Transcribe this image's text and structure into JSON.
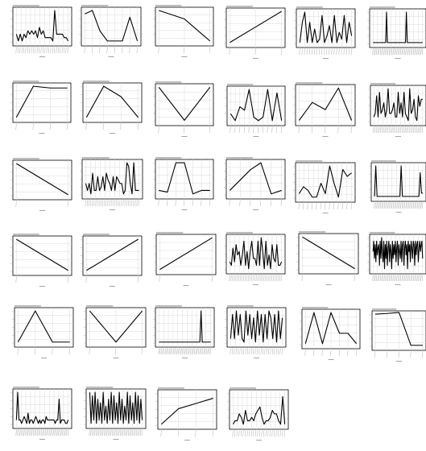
{
  "chart_data": [
    {
      "type": "line",
      "grid": true,
      "values": [
        3,
        1,
        3,
        1,
        3,
        2,
        4,
        3,
        4,
        3,
        4,
        2,
        5,
        3,
        4,
        2,
        2,
        2,
        2,
        1,
        10,
        3,
        3,
        3,
        3,
        2,
        2,
        1
      ],
      "ylim": [
        0,
        10.5
      ]
    },
    {
      "type": "line",
      "grid": true,
      "values": [
        9,
        10,
        4,
        1,
        1,
        1,
        8,
        1
      ],
      "ylim": [
        0,
        10.5
      ]
    },
    {
      "type": "line",
      "grid": true,
      "values": [
        10,
        7.5,
        1
      ],
      "ylim": [
        0,
        10.5
      ]
    },
    {
      "type": "line",
      "grid": true,
      "values": [
        1,
        5.5,
        10
      ],
      "ylim": [
        0,
        10.5
      ]
    },
    {
      "type": "line",
      "grid": true,
      "values": [
        1,
        7,
        10,
        1,
        7,
        1,
        5,
        1,
        2,
        9,
        1,
        3,
        6,
        1,
        9,
        1,
        4,
        2,
        9,
        1,
        7,
        3
      ],
      "ylim": [
        0,
        10.5
      ]
    },
    {
      "type": "line",
      "grid": true,
      "values": [
        1,
        1,
        1,
        1,
        1,
        1,
        1,
        1,
        1,
        1,
        1,
        1,
        1,
        1,
        1,
        10,
        1,
        1,
        1,
        1,
        1,
        1,
        1,
        1,
        1,
        1,
        1,
        1,
        1,
        1,
        1,
        1,
        1,
        1,
        1,
        1,
        1,
        10,
        1,
        1,
        1,
        1,
        1,
        1,
        1,
        1,
        1,
        1,
        1,
        1,
        1,
        1,
        1,
        1,
        1,
        1
      ],
      "ylim": [
        0,
        10.5
      ]
    },
    {
      "type": "line",
      "grid": true,
      "values": [
        1,
        10,
        9.5,
        9.5
      ],
      "ylim": [
        0,
        10.5
      ]
    },
    {
      "type": "line",
      "grid": true,
      "values": [
        1,
        10,
        7,
        1
      ],
      "ylim": [
        0,
        10.5
      ]
    },
    {
      "type": "line",
      "grid": true,
      "values": [
        10,
        1,
        10
      ],
      "ylim": [
        0,
        10.5
      ]
    },
    {
      "type": "line",
      "grid": true,
      "values": [
        3,
        1,
        5,
        4,
        10,
        2,
        1,
        2,
        10,
        1,
        9,
        1
      ],
      "ylim": [
        0,
        10.5
      ]
    },
    {
      "type": "line",
      "grid": true,
      "values": [
        1,
        6,
        4,
        10,
        1
      ],
      "ylim": [
        0,
        10.5
      ]
    },
    {
      "type": "line",
      "grid": true,
      "values": [
        2,
        3,
        8,
        2,
        9,
        3,
        4,
        6,
        2,
        4,
        10,
        3,
        3,
        4,
        6,
        2,
        2,
        9,
        3,
        6,
        2,
        9,
        3,
        2,
        1,
        10,
        3,
        4,
        7,
        2,
        1,
        8,
        5,
        7,
        7
      ],
      "ylim": [
        0,
        10.5
      ]
    },
    {
      "type": "line",
      "grid": true,
      "values": [
        10,
        1
      ],
      "ylim": [
        0,
        10.5
      ]
    },
    {
      "type": "line",
      "grid": true,
      "values": [
        4,
        2,
        4,
        1,
        7,
        2,
        2,
        6,
        2,
        3,
        6,
        2,
        7,
        5,
        4,
        2,
        6,
        2,
        6,
        5,
        4,
        4,
        1,
        2,
        10,
        9,
        4,
        1,
        10,
        2,
        2,
        2
      ],
      "ylim": [
        0,
        10.5
      ]
    },
    {
      "type": "line",
      "grid": true,
      "values": [
        2,
        1.5,
        10,
        10,
        1,
        2,
        2
      ],
      "ylim": [
        0,
        10.5
      ]
    },
    {
      "type": "line",
      "grid": true,
      "values": [
        2,
        5,
        8,
        10,
        1,
        2
      ],
      "ylim": [
        0,
        10.5
      ]
    },
    {
      "type": "line",
      "grid": true,
      "values": [
        2,
        4,
        3,
        1,
        1,
        5,
        2,
        10,
        5,
        1,
        9,
        7,
        8
      ],
      "ylim": [
        0,
        10.5
      ]
    },
    {
      "type": "line",
      "grid": true,
      "values": [
        1,
        10,
        1,
        1,
        1,
        1,
        1,
        1,
        1,
        1,
        1,
        1,
        1,
        1,
        1,
        1,
        1,
        1,
        1,
        1,
        1,
        10,
        1,
        1,
        1,
        1,
        1,
        1,
        1,
        1,
        1,
        1,
        1,
        1,
        1,
        1,
        8,
        2,
        2
      ],
      "ylim": [
        0,
        10.5
      ]
    },
    {
      "type": "line",
      "grid": true,
      "values": [
        10,
        1
      ],
      "ylim": [
        0,
        10.5
      ]
    },
    {
      "type": "line",
      "grid": true,
      "values": [
        1,
        10
      ],
      "ylim": [
        0,
        10.5
      ]
    },
    {
      "type": "line",
      "grid": true,
      "values": [
        1,
        10
      ],
      "ylim": [
        0,
        10.5
      ]
    },
    {
      "type": "line",
      "grid": true,
      "values": [
        3,
        2,
        7,
        3,
        8,
        5,
        6,
        2,
        5,
        9,
        2,
        6,
        1,
        6,
        9,
        4,
        4,
        2,
        9,
        2,
        10,
        6,
        1,
        9,
        2,
        5,
        1,
        8,
        4,
        3,
        8,
        2,
        2,
        3
      ],
      "ylim": [
        0,
        10.5
      ]
    },
    {
      "type": "line",
      "grid": true,
      "values": [
        10,
        1
      ],
      "ylim": [
        0,
        10.5
      ]
    },
    {
      "type": "line",
      "grid": true,
      "values": [
        6,
        9,
        4,
        8,
        3,
        9,
        5,
        7,
        8,
        2,
        9,
        4,
        10,
        6,
        3,
        9,
        1,
        8,
        4,
        9,
        2,
        7,
        9,
        3,
        8,
        6,
        1,
        9,
        4,
        8,
        5,
        9,
        3,
        7,
        9,
        2,
        8,
        6,
        4,
        9,
        3,
        8,
        9,
        2,
        7,
        9,
        5,
        8,
        1,
        9,
        6,
        8,
        3,
        9,
        7,
        4,
        9,
        8,
        2,
        9,
        5,
        8,
        9,
        3,
        7,
        9,
        6,
        8,
        9,
        4
      ],
      "ylim": [
        0,
        10.5
      ]
    },
    {
      "type": "line",
      "grid": true,
      "values": [
        1,
        10,
        1,
        1
      ],
      "ylim": [
        0,
        10.5
      ]
    },
    {
      "type": "line",
      "grid": true,
      "values": [
        10,
        1,
        10
      ],
      "ylim": [
        0,
        10.5
      ]
    },
    {
      "type": "line",
      "grid": true,
      "values": [
        1,
        1,
        1,
        1,
        1,
        1,
        1,
        1,
        1,
        1,
        1,
        1,
        1,
        1,
        1,
        1,
        1,
        1,
        1,
        1,
        1,
        1,
        1,
        1,
        1,
        1,
        1,
        1,
        1,
        1,
        1,
        1,
        1,
        1,
        1,
        10,
        1,
        1,
        1,
        1,
        1,
        1,
        1,
        1
      ],
      "ylim": [
        0,
        10.5
      ]
    },
    {
      "type": "line",
      "grid": true,
      "values": [
        2,
        9,
        2,
        10,
        3,
        9,
        2,
        1,
        10,
        3,
        9,
        2,
        8,
        1,
        10,
        3,
        9,
        1,
        9,
        2,
        10,
        8,
        2,
        9,
        1,
        10,
        2,
        8
      ],
      "ylim": [
        0,
        10.5
      ]
    },
    {
      "type": "line",
      "grid": true,
      "values": [
        1,
        10,
        1,
        10,
        4,
        4,
        1
      ],
      "ylim": [
        0,
        10.5
      ]
    },
    {
      "type": "line",
      "grid": true,
      "values": [
        10,
        10.2,
        10.5,
        1,
        1
      ],
      "ylim": [
        0,
        10.5
      ]
    },
    {
      "type": "line",
      "grid": true,
      "values": [
        2,
        10,
        2,
        2,
        1,
        2,
        3,
        2,
        1,
        4,
        1,
        2,
        2,
        1,
        2,
        3,
        2,
        1,
        2,
        1,
        2,
        2,
        1,
        3,
        2,
        2,
        2,
        2,
        2,
        2,
        1,
        2,
        2,
        8,
        1,
        2,
        2,
        2,
        1,
        1,
        2
      ],
      "ylim": [
        0,
        10.5
      ]
    },
    {
      "type": "line",
      "grid": true,
      "values": [
        10,
        1,
        9,
        2,
        10,
        1,
        8,
        2,
        7,
        1,
        10,
        2,
        6,
        1,
        8,
        2,
        10,
        1,
        9,
        2,
        7,
        1,
        10,
        2,
        8,
        1,
        6,
        2,
        10,
        1,
        9,
        2,
        7,
        1,
        10,
        2,
        9,
        1,
        8,
        2
      ],
      "ylim": [
        0,
        10.5
      ]
    },
    {
      "type": "line",
      "grid": true,
      "values": [
        1,
        5.5,
        7,
        8.5
      ],
      "ylim": [
        0,
        10.5
      ]
    },
    {
      "type": "line",
      "grid": true,
      "values": [
        1,
        2,
        2,
        4,
        3,
        1,
        5,
        2,
        2,
        3,
        2,
        4,
        5,
        6,
        3,
        1,
        2,
        2,
        3,
        5,
        4,
        4,
        2,
        1,
        9,
        1
      ],
      "ylim": [
        0,
        10.5
      ]
    }
  ]
}
